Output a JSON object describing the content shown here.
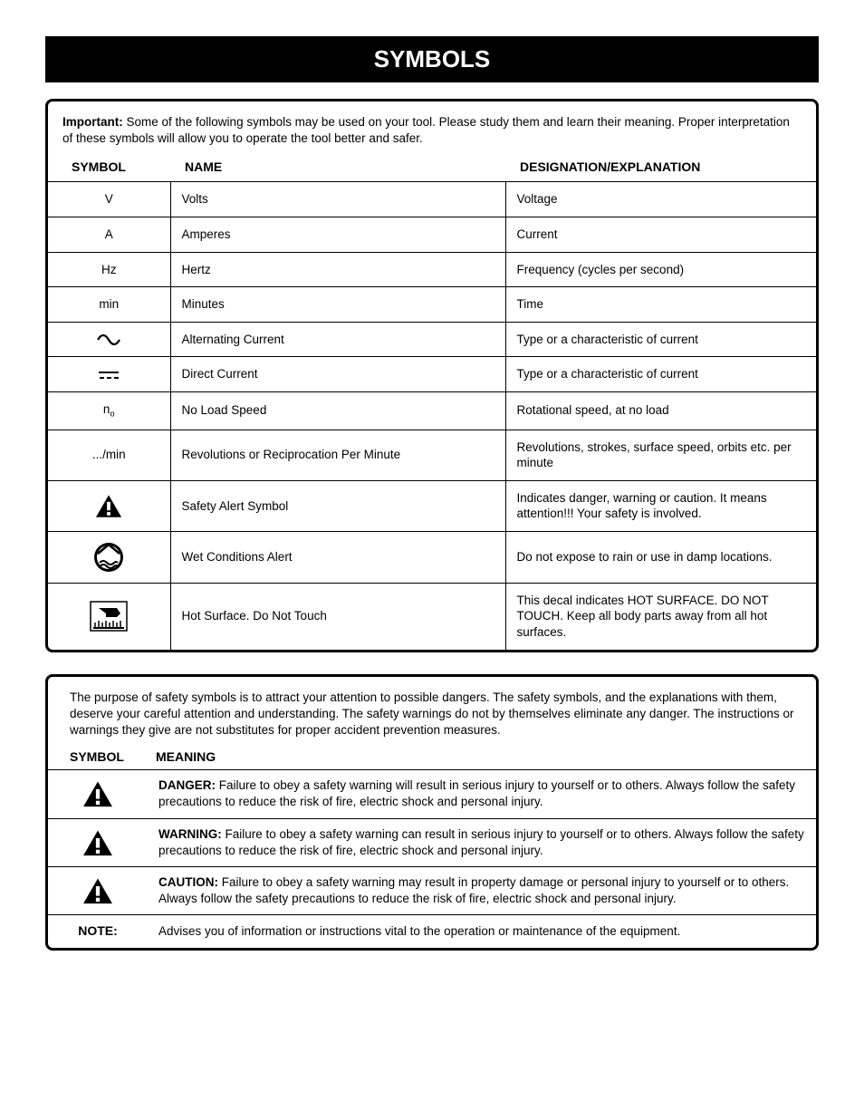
{
  "title": "SYMBOLS",
  "box1": {
    "intro_bold": "Important:",
    "intro_text": " Some of the following symbols may be used on your tool. Please study them and learn their meaning. Proper interpretation of these symbols will allow you to operate the tool better and safer.",
    "headers": {
      "symbol": "SYMBOL",
      "name": "NAME",
      "explanation": "DESIGNATION/EXPLANATION"
    },
    "rows": [
      {
        "symbol_text": "V",
        "name": "Volts",
        "explanation": "Voltage"
      },
      {
        "symbol_text": "A",
        "name": "Amperes",
        "explanation": "Current"
      },
      {
        "symbol_text": "Hz",
        "name": "Hertz",
        "explanation": "Frequency (cycles per second)"
      },
      {
        "symbol_text": "min",
        "name": "Minutes",
        "explanation": "Time"
      },
      {
        "symbol_icon": "ac-wave",
        "name": "Alternating Current",
        "explanation": "Type or a characteristic of current"
      },
      {
        "symbol_icon": "dc-bars",
        "name": "Direct Current",
        "explanation": "Type or a characteristic of current"
      },
      {
        "symbol_html": "n<sub>o</sub>",
        "name": "No Load Speed",
        "explanation": "Rotational speed, at no load"
      },
      {
        "symbol_text": ".../min",
        "name": "Revolutions or Reciprocation Per Minute",
        "explanation": "Revolutions, strokes, surface speed, orbits etc. per minute"
      },
      {
        "symbol_icon": "alert-triangle",
        "name": "Safety Alert Symbol",
        "explanation": "Indicates danger, warning or caution. It means attention!!! Your safety is involved."
      },
      {
        "symbol_icon": "wet-circle",
        "name": "Wet Conditions Alert",
        "explanation": "Do not expose to rain or use in damp locations."
      },
      {
        "symbol_icon": "hot-surface",
        "name": "Hot Surface. Do Not Touch",
        "explanation": "This decal indicates HOT SURFACE. DO NOT TOUCH. Keep all body parts away from all hot surfaces."
      }
    ]
  },
  "box2": {
    "intro": "The purpose of safety symbols is to attract your attention to possible dangers. The safety symbols, and the explanations with them, deserve your careful attention and understanding. The safety warnings do not by themselves eliminate any danger. The instructions or warnings they give are not substitutes for proper accident prevention measures.",
    "headers": {
      "symbol": "SYMBOL",
      "meaning": "MEANING"
    },
    "rows": [
      {
        "icon": "alert-triangle",
        "label": "DANGER:",
        "text": " Failure to obey a safety warning will result in serious injury to yourself or to others. Always follow the safety precautions to reduce the risk of fire, electric shock and personal injury."
      },
      {
        "icon": "alert-triangle",
        "label": "WARNING:",
        "text": " Failure to obey a safety warning can result in serious injury to yourself or to others. Always follow the safety precautions to reduce the risk of fire, electric shock and personal injury."
      },
      {
        "icon": "alert-triangle",
        "label": "CAUTION:",
        "text": " Failure to obey a safety warning may result in property damage or personal injury to yourself or to others. Always follow the safety precautions to reduce the risk of fire, electric shock and personal injury."
      },
      {
        "note": "NOTE:",
        "text": "Advises you of information or instructions vital to the operation or maintenance of the equipment."
      }
    ]
  },
  "colors": {
    "bg": "#ffffff",
    "text": "#000000",
    "title_bg": "#000000",
    "title_fg": "#ffffff",
    "border": "#000000"
  }
}
